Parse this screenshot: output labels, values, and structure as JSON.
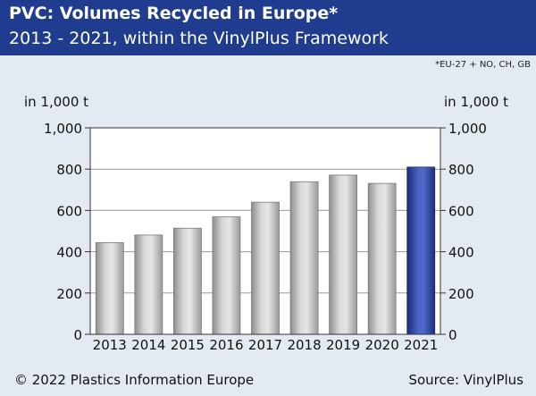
{
  "header": {
    "title": "PVC: Volumes Recycled in Europe*",
    "subtitle": "2013 - 2021, within the VinylPlus Framework"
  },
  "footnote": "*EU-27 + NO, CH, GB",
  "footer": {
    "copyright": "© 2022 Plastics Information Europe",
    "source": "Source: VinylPlus"
  },
  "colors": {
    "header_bg": "#1f3c8f",
    "page_bg": "#e4eaf2",
    "bar_gray": "#b8b8b8",
    "bar_highlight": "#2a3f9a"
  },
  "chart_data": {
    "type": "bar",
    "title": "PVC: Volumes Recycled in Europe*",
    "subtitle": "2013 - 2021, within the VinylPlus Framework",
    "categories": [
      "2013",
      "2014",
      "2015",
      "2016",
      "2017",
      "2018",
      "2019",
      "2020",
      "2021"
    ],
    "values": [
      444,
      481,
      514,
      569,
      640,
      739,
      771,
      731,
      810
    ],
    "highlight_index": 8,
    "ylabel_left": "in 1,000 t",
    "ylabel_right": "in 1,000 t",
    "ylim": [
      0,
      1000
    ],
    "yticks": [
      0,
      200,
      400,
      600,
      800,
      1000
    ],
    "ytick_labels": [
      "0",
      "200",
      "400",
      "600",
      "800",
      "1,000"
    ],
    "grid": true
  }
}
